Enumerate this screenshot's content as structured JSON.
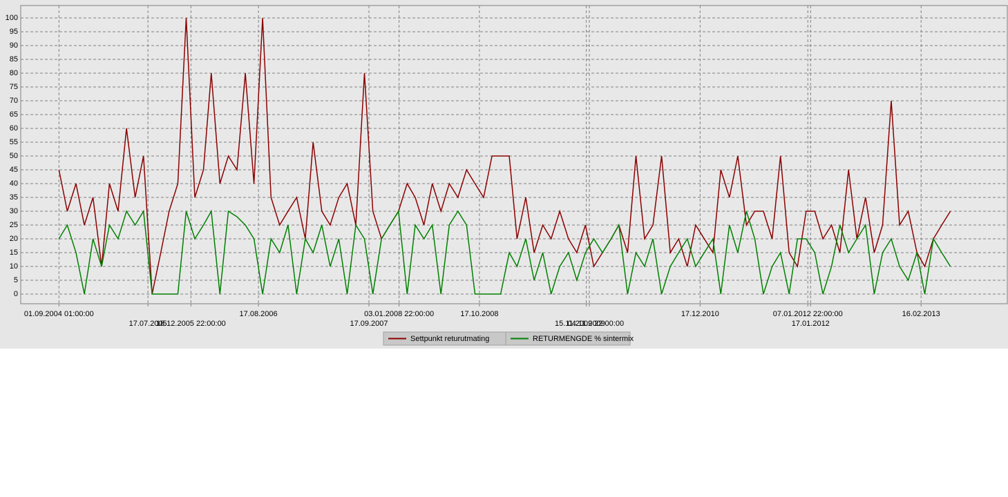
{
  "chart_data": {
    "type": "line",
    "x": [
      "01.09.2004",
      "01.10.2004",
      "01.11.2004",
      "01.12.2004",
      "01.01.2005",
      "01.02.2005",
      "01.03.2005",
      "01.04.2005",
      "01.05.2005",
      "01.06.2005",
      "01.07.2005",
      "01.08.2005",
      "01.09.2005",
      "01.10.2005",
      "01.11.2005",
      "01.12.2005",
      "01.01.2006",
      "01.02.2006",
      "01.03.2006",
      "01.04.2006",
      "01.05.2006",
      "01.06.2006",
      "01.07.2006",
      "01.08.2006",
      "01.09.2006",
      "01.10.2006",
      "01.11.2006",
      "01.12.2006",
      "01.01.2007",
      "01.02.2007",
      "01.03.2007",
      "01.04.2007",
      "01.05.2007",
      "01.06.2007",
      "01.07.2007",
      "01.08.2007",
      "01.09.2007",
      "01.10.2007",
      "01.11.2007",
      "01.12.2007",
      "01.01.2008",
      "01.02.2008",
      "01.03.2008",
      "01.04.2008",
      "01.05.2008",
      "01.06.2008",
      "01.07.2008",
      "01.08.2008",
      "01.09.2008",
      "01.10.2008",
      "01.11.2008",
      "01.12.2008",
      "01.01.2009",
      "01.02.2009",
      "01.03.2009",
      "01.04.2009",
      "01.05.2009",
      "01.06.2009",
      "01.07.2009",
      "01.08.2009",
      "01.09.2009",
      "01.10.2009",
      "01.11.2009",
      "01.12.2009",
      "01.01.2010",
      "01.02.2010",
      "01.03.2010",
      "01.04.2010",
      "01.05.2010",
      "01.06.2010",
      "01.07.2010",
      "01.08.2010",
      "01.09.2010",
      "01.10.2010",
      "01.11.2010",
      "01.12.2010",
      "01.01.2011",
      "01.02.2011",
      "01.03.2011",
      "01.04.2011",
      "01.05.2011",
      "01.06.2011",
      "01.07.2011",
      "01.08.2011",
      "01.09.2011",
      "01.10.2011",
      "01.11.2011",
      "01.12.2011",
      "01.01.2012",
      "01.02.2012",
      "01.03.2012",
      "01.04.2012",
      "01.05.2012",
      "01.06.2012",
      "01.07.2012",
      "01.08.2012",
      "01.09.2012",
      "01.10.2012",
      "01.11.2012",
      "01.12.2012",
      "01.01.2013",
      "01.02.2013",
      "01.03.2013",
      "01.04.2013",
      "01.05.2013",
      "01.06.2013"
    ],
    "series": [
      {
        "name": "Settpunkt returutmating",
        "color": "#8b0000",
        "values": [
          45,
          30,
          40,
          25,
          35,
          10,
          40,
          30,
          60,
          35,
          50,
          0,
          15,
          30,
          40,
          100,
          35,
          45,
          80,
          40,
          50,
          45,
          80,
          40,
          100,
          35,
          25,
          30,
          35,
          20,
          55,
          30,
          25,
          35,
          40,
          25,
          80,
          30,
          20,
          25,
          30,
          40,
          35,
          25,
          40,
          30,
          40,
          35,
          45,
          40,
          35,
          50,
          50,
          50,
          20,
          35,
          15,
          25,
          20,
          30,
          20,
          15,
          25,
          10,
          15,
          20,
          25,
          15,
          50,
          20,
          25,
          50,
          15,
          20,
          10,
          25,
          20,
          15,
          45,
          35,
          50,
          25,
          30,
          30,
          20,
          50,
          15,
          10,
          30,
          30,
          20,
          25,
          15,
          45,
          20,
          35,
          15,
          25,
          70,
          25,
          30,
          15,
          10,
          20,
          25,
          30
        ]
      },
      {
        "name": "RETURMENGDE % sintermix",
        "color": "#008000",
        "values": [
          20,
          25,
          15,
          0,
          20,
          10,
          25,
          20,
          30,
          25,
          30,
          0,
          0,
          0,
          0,
          30,
          20,
          25,
          30,
          0,
          30,
          28,
          25,
          20,
          0,
          20,
          15,
          25,
          0,
          20,
          15,
          25,
          10,
          20,
          0,
          25,
          20,
          0,
          20,
          25,
          30,
          0,
          25,
          20,
          25,
          0,
          25,
          30,
          25,
          0,
          0,
          0,
          0,
          15,
          10,
          20,
          5,
          15,
          0,
          10,
          15,
          5,
          15,
          20,
          15,
          20,
          25,
          0,
          15,
          10,
          20,
          0,
          10,
          15,
          20,
          10,
          15,
          20,
          0,
          25,
          15,
          30,
          20,
          0,
          10,
          15,
          0,
          20,
          20,
          15,
          0,
          10,
          25,
          15,
          20,
          25,
          0,
          15,
          20,
          10,
          5,
          15,
          0,
          20,
          15,
          10
        ]
      }
    ],
    "xlim": [
      "17.04.2004",
      "22.12.2013"
    ],
    "xticks": [
      {
        "value": "01.09.2004",
        "label": "01.09.2004 01:00:00"
      },
      "17.07.2005",
      {
        "value": "18.12.2005",
        "label": "18.12.2005 22:00:00"
      },
      "17.08.2006",
      "17.09.2007",
      {
        "value": "03.01.2008",
        "label": "03.01.2008 22:00:00"
      },
      "17.10.2008",
      "04.11.2009",
      {
        "value": "15.11.2009",
        "label": "15.11.2009 22:00:00"
      },
      "17.12.2010",
      {
        "value": "07.01.2012",
        "label": "07.01.2012 22:00:00"
      },
      "17.01.2012",
      "16.02.2013"
    ],
    "ylim": [
      -3.5,
      104.5
    ],
    "yticks": [
      0,
      5,
      10,
      15,
      20,
      25,
      30,
      35,
      40,
      45,
      50,
      55,
      60,
      65,
      70,
      75,
      80,
      85,
      90,
      95,
      100
    ],
    "grid": true
  }
}
